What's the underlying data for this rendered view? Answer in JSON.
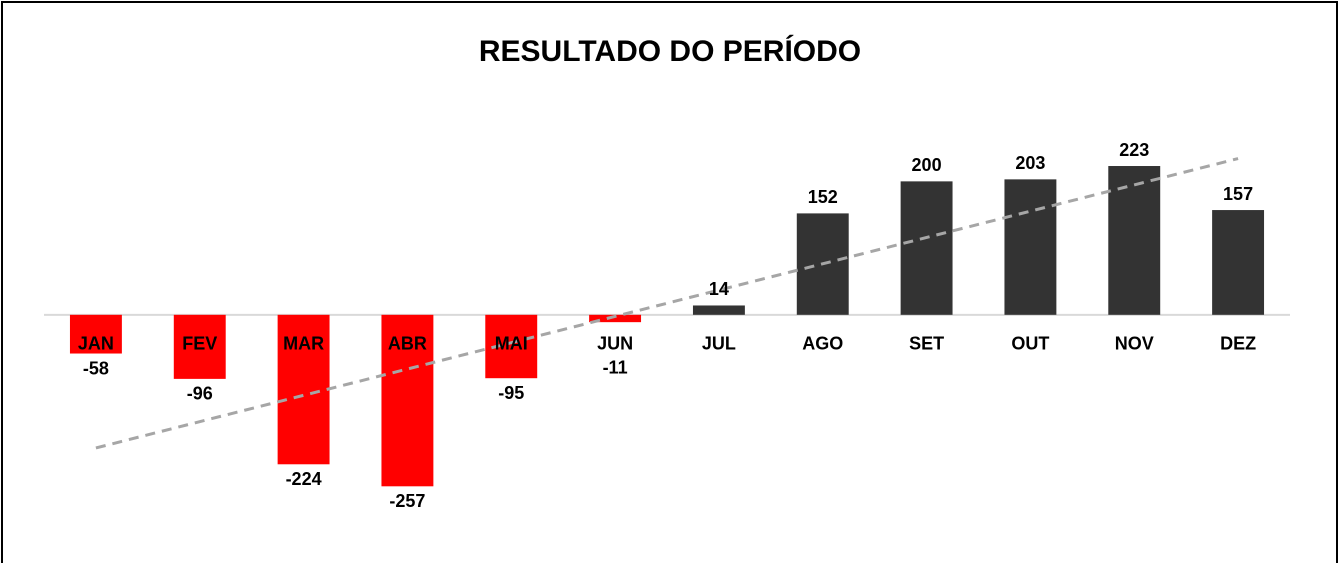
{
  "chart_data": {
    "type": "bar",
    "title": "RESULTADO DO PERÍODO",
    "categories": [
      "JAN",
      "FEV",
      "MAR",
      "ABR",
      "MAI",
      "JUN",
      "JUL",
      "AGO",
      "SET",
      "OUT",
      "NOV",
      "DEZ"
    ],
    "values": [
      -58,
      -96,
      -224,
      -257,
      -95,
      -11,
      14,
      152,
      200,
      203,
      223,
      157
    ],
    "positive_color": "#333333",
    "negative_color": "#ff0000",
    "ylim": [
      -300,
      250
    ],
    "trendline": true,
    "trendline_color": "#a6a6a6"
  }
}
